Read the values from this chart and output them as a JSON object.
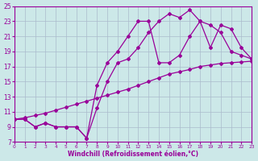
{
  "line1_x": [
    0,
    1,
    2,
    3,
    4,
    5,
    6,
    7,
    8,
    9,
    10,
    11,
    12,
    13,
    14,
    15,
    16,
    17,
    18,
    19,
    20,
    21,
    22,
    23
  ],
  "line1_y": [
    10.0,
    10.2,
    10.5,
    10.8,
    11.2,
    11.6,
    12.0,
    12.4,
    12.8,
    13.2,
    13.6,
    14.0,
    14.5,
    15.0,
    15.5,
    16.0,
    16.3,
    16.6,
    17.0,
    17.2,
    17.4,
    17.5,
    17.6,
    17.7
  ],
  "line2_x": [
    0,
    1,
    2,
    3,
    4,
    5,
    6,
    7,
    8,
    9,
    10,
    11,
    12,
    13,
    14,
    15,
    16,
    17,
    18,
    19,
    20,
    21,
    22,
    23
  ],
  "line2_y": [
    10.0,
    10.0,
    9.0,
    9.5,
    9.0,
    9.0,
    9.0,
    7.5,
    11.5,
    15.0,
    17.5,
    18.0,
    19.5,
    21.5,
    23.0,
    24.0,
    23.5,
    24.5,
    23.0,
    19.5,
    22.5,
    22.0,
    19.5,
    18.0
  ],
  "line3_x": [
    0,
    1,
    2,
    3,
    4,
    5,
    6,
    7,
    8,
    9,
    10,
    11,
    12,
    13,
    14,
    15,
    16,
    17,
    18,
    19,
    20,
    21,
    22,
    23
  ],
  "line3_y": [
    10.0,
    10.0,
    9.0,
    9.5,
    9.0,
    9.0,
    9.0,
    7.5,
    14.5,
    17.5,
    19.0,
    21.0,
    23.0,
    23.0,
    17.5,
    17.5,
    18.5,
    21.0,
    23.0,
    22.5,
    21.5,
    19.0,
    18.5,
    18.0
  ],
  "color": "#990099",
  "bg_color": "#cce8e8",
  "grid_color": "#aabbcc",
  "xlabel": "Windchill (Refroidissement éolien,°C)",
  "ylim": [
    7,
    25
  ],
  "xlim": [
    0,
    23
  ],
  "yticks": [
    7,
    9,
    11,
    13,
    15,
    17,
    19,
    21,
    23,
    25
  ],
  "xticks": [
    0,
    1,
    2,
    3,
    4,
    5,
    6,
    7,
    8,
    9,
    10,
    11,
    12,
    13,
    14,
    15,
    16,
    17,
    18,
    19,
    20,
    21,
    22,
    23
  ]
}
